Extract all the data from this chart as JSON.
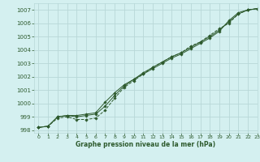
{
  "title": "Graphe pression niveau de la mer (hPa)",
  "bg_color": "#d4f0f0",
  "grid_color": "#b8d8d8",
  "line_color": "#2d5a2d",
  "xlim": [
    -0.5,
    23
  ],
  "ylim": [
    997.8,
    1007.5
  ],
  "yticks": [
    998,
    999,
    1000,
    1001,
    1002,
    1003,
    1004,
    1005,
    1006,
    1007
  ],
  "xticks": [
    0,
    1,
    2,
    3,
    4,
    5,
    6,
    7,
    8,
    9,
    10,
    11,
    12,
    13,
    14,
    15,
    16,
    17,
    18,
    19,
    20,
    21,
    22,
    23
  ],
  "series": [
    [
      998.2,
      998.3,
      999.0,
      999.1,
      999.1,
      999.2,
      999.3,
      1000.1,
      1000.8,
      1001.4,
      1001.8,
      1002.2,
      1002.6,
      1003.0,
      1003.4,
      1003.7,
      1004.1,
      1004.5,
      1004.9,
      1005.4,
      1006.2,
      1006.8,
      1007.0,
      1007.1
    ],
    [
      998.2,
      998.3,
      998.9,
      999.0,
      998.8,
      998.8,
      998.9,
      999.5,
      1000.4,
      1001.2,
      1001.7,
      1002.2,
      1002.7,
      1003.1,
      1003.5,
      1003.8,
      1004.3,
      1004.6,
      1005.1,
      1005.6,
      1006.0,
      1006.7,
      1007.0,
      1007.1
    ],
    [
      998.2,
      998.3,
      999.0,
      999.1,
      999.0,
      999.1,
      999.2,
      999.8,
      1000.6,
      1001.3,
      1001.8,
      1002.3,
      1002.7,
      1003.1,
      1003.5,
      1003.8,
      1004.2,
      1004.6,
      1005.0,
      1005.5,
      1006.1,
      1006.7,
      1007.0,
      1007.1
    ]
  ]
}
